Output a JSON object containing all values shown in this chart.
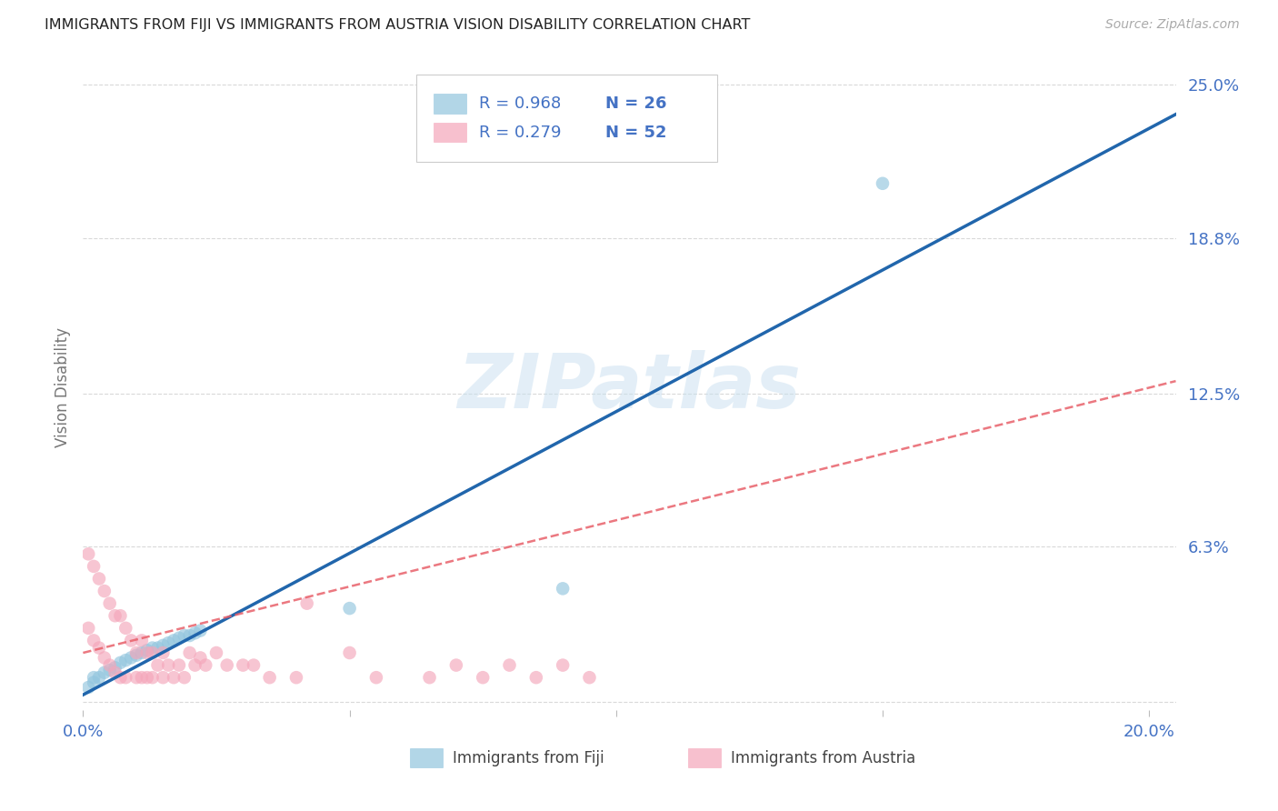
{
  "title": "IMMIGRANTS FROM FIJI VS IMMIGRANTS FROM AUSTRIA VISION DISABILITY CORRELATION CHART",
  "source": "Source: ZipAtlas.com",
  "ylabel": "Vision Disability",
  "xlim": [
    0.0,
    0.205
  ],
  "ylim": [
    -0.003,
    0.258
  ],
  "xtick_positions": [
    0.0,
    0.05,
    0.1,
    0.15,
    0.2
  ],
  "xticklabels": [
    "0.0%",
    "",
    "",
    "",
    "20.0%"
  ],
  "ytick_positions": [
    0.0,
    0.063,
    0.125,
    0.188,
    0.25
  ],
  "yticklabels": [
    "",
    "6.3%",
    "12.5%",
    "18.8%",
    "25.0%"
  ],
  "fiji_color": "#92c5de",
  "austria_color": "#f4a6ba",
  "fiji_line_color": "#2166ac",
  "austria_line_color": "#e8606a",
  "tick_color": "#4472c4",
  "watermark_text": "ZIPatlas",
  "watermark_color": "#c8dff0",
  "legend_fiji_R": "R = 0.968",
  "legend_fiji_N": "N = 26",
  "legend_austria_R": "R = 0.279",
  "legend_austria_N": "N = 52",
  "legend_fiji_label": "Immigrants from Fiji",
  "legend_austria_label": "Immigrants from Austria",
  "background_color": "#ffffff",
  "grid_color": "#d0d0d0",
  "fiji_x": [
    0.001,
    0.002,
    0.002,
    0.003,
    0.004,
    0.005,
    0.006,
    0.007,
    0.008,
    0.009,
    0.01,
    0.011,
    0.012,
    0.013,
    0.014,
    0.015,
    0.016,
    0.017,
    0.018,
    0.019,
    0.02,
    0.021,
    0.022,
    0.05,
    0.09,
    0.15
  ],
  "fiji_y": [
    0.006,
    0.008,
    0.01,
    0.01,
    0.012,
    0.013,
    0.014,
    0.016,
    0.017,
    0.018,
    0.019,
    0.02,
    0.021,
    0.022,
    0.022,
    0.023,
    0.024,
    0.025,
    0.026,
    0.027,
    0.027,
    0.028,
    0.029,
    0.038,
    0.046,
    0.21
  ],
  "austria_x": [
    0.001,
    0.001,
    0.002,
    0.002,
    0.003,
    0.003,
    0.004,
    0.004,
    0.005,
    0.005,
    0.006,
    0.006,
    0.007,
    0.007,
    0.008,
    0.008,
    0.009,
    0.01,
    0.01,
    0.011,
    0.011,
    0.012,
    0.012,
    0.013,
    0.013,
    0.014,
    0.015,
    0.015,
    0.016,
    0.017,
    0.018,
    0.019,
    0.02,
    0.021,
    0.022,
    0.023,
    0.025,
    0.027,
    0.03,
    0.032,
    0.035,
    0.04,
    0.042,
    0.05,
    0.055,
    0.065,
    0.07,
    0.075,
    0.08,
    0.085,
    0.09,
    0.095
  ],
  "austria_y": [
    0.06,
    0.03,
    0.055,
    0.025,
    0.05,
    0.022,
    0.045,
    0.018,
    0.04,
    0.015,
    0.035,
    0.012,
    0.035,
    0.01,
    0.03,
    0.01,
    0.025,
    0.02,
    0.01,
    0.025,
    0.01,
    0.02,
    0.01,
    0.02,
    0.01,
    0.015,
    0.02,
    0.01,
    0.015,
    0.01,
    0.015,
    0.01,
    0.02,
    0.015,
    0.018,
    0.015,
    0.02,
    0.015,
    0.015,
    0.015,
    0.01,
    0.01,
    0.04,
    0.02,
    0.01,
    0.01,
    0.015,
    0.01,
    0.015,
    0.01,
    0.015,
    0.01
  ],
  "fiji_line_x0": 0.0,
  "fiji_line_y0": 0.003,
  "fiji_line_x1": 0.205,
  "fiji_line_y1": 0.238,
  "austria_line_x0": 0.0,
  "austria_line_y0": 0.02,
  "austria_line_x1": 0.205,
  "austria_line_y1": 0.13
}
